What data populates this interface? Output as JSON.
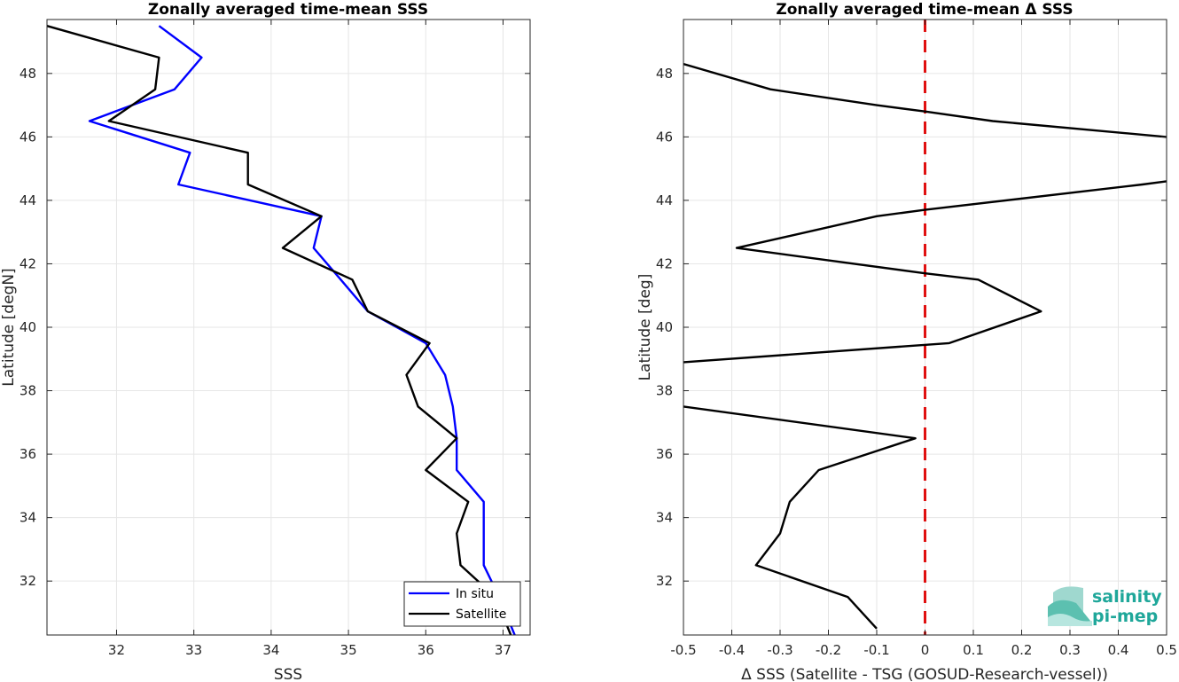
{
  "chart_data": [
    {
      "type": "line",
      "title": "Zonally averaged time-mean SSS",
      "xlabel": "SSS",
      "ylabel": "Latitude [degN]",
      "xlim": [
        31.1,
        37.35
      ],
      "ylim": [
        30.3,
        49.7
      ],
      "xticks": [
        32,
        33,
        34,
        35,
        36,
        37
      ],
      "yticks": [
        32,
        34,
        36,
        38,
        40,
        42,
        44,
        46,
        48
      ],
      "grid": true,
      "legend": {
        "placement": "bottom-right"
      },
      "series": [
        {
          "name": "In situ",
          "color": "#0000ff",
          "points": [
            [
              32.55,
              49.5
            ],
            [
              33.1,
              48.5
            ],
            [
              32.75,
              47.5
            ],
            [
              31.65,
              46.5
            ],
            [
              32.95,
              45.5
            ],
            [
              32.8,
              44.5
            ],
            [
              34.65,
              43.5
            ],
            [
              34.55,
              42.5
            ],
            [
              34.9,
              41.5
            ],
            [
              35.25,
              40.5
            ],
            [
              36.0,
              39.5
            ],
            [
              36.25,
              38.5
            ],
            [
              36.35,
              37.5
            ],
            [
              36.4,
              36.5
            ],
            [
              36.4,
              35.5
            ],
            [
              36.75,
              34.5
            ],
            [
              36.75,
              33.5
            ],
            [
              36.75,
              32.5
            ],
            [
              36.95,
              31.5
            ],
            [
              37.15,
              30.3
            ]
          ]
        },
        {
          "name": "Satellite",
          "color": "#000000",
          "points": [
            [
              31.1,
              49.5
            ],
            [
              32.55,
              48.5
            ],
            [
              32.5,
              47.5
            ],
            [
              31.9,
              46.5
            ],
            [
              33.7,
              45.5
            ],
            [
              33.7,
              44.5
            ],
            [
              34.65,
              43.5
            ],
            [
              34.15,
              42.5
            ],
            [
              35.05,
              41.5
            ],
            [
              35.25,
              40.5
            ],
            [
              36.05,
              39.5
            ],
            [
              35.75,
              38.5
            ],
            [
              35.9,
              37.5
            ],
            [
              36.4,
              36.5
            ],
            [
              36.0,
              35.5
            ],
            [
              36.55,
              34.5
            ],
            [
              36.4,
              33.5
            ],
            [
              36.45,
              32.5
            ],
            [
              36.9,
              31.5
            ],
            [
              37.1,
              30.3
            ]
          ]
        }
      ]
    },
    {
      "type": "line",
      "title": "Zonally averaged time-mean Δ SSS",
      "xlabel": "Δ SSS (Satellite - TSG (GOSUD-Research-vessel))",
      "ylabel": "Latitude [deg]",
      "xlim": [
        -0.5,
        0.5
      ],
      "ylim": [
        30.3,
        49.7
      ],
      "xticks": [
        "-0.5",
        "-0.4",
        "-0.3",
        "-0.2",
        "-0.1",
        "0",
        "0.1",
        "0.2",
        "0.3",
        "0.4",
        "0.5"
      ],
      "yticks": [
        32,
        34,
        36,
        38,
        40,
        42,
        44,
        46,
        48
      ],
      "grid": true,
      "reference_line": {
        "x": 0,
        "color": "#e01010",
        "style": "dashed"
      },
      "series": [
        {
          "color": "#000000",
          "points": [
            [
              -0.5,
              48.3
            ],
            [
              -0.32,
              47.5
            ],
            [
              -0.1,
              47.0
            ],
            [
              0.0,
              46.8
            ],
            [
              0.14,
              46.5
            ],
            [
              0.5,
              46.0
            ],
            [
              null,
              null
            ],
            [
              0.5,
              44.6
            ],
            [
              0.45,
              44.5
            ],
            [
              0.0,
              43.7
            ],
            [
              -0.1,
              43.5
            ],
            [
              -0.39,
              42.5
            ],
            [
              0.0,
              41.7
            ],
            [
              0.11,
              41.5
            ],
            [
              0.24,
              40.5
            ],
            [
              0.05,
              39.5
            ],
            [
              -0.5,
              38.9
            ],
            [
              null,
              null
            ],
            [
              -0.5,
              37.5
            ],
            [
              -0.02,
              36.5
            ],
            [
              -0.22,
              35.5
            ],
            [
              -0.28,
              34.5
            ],
            [
              -0.3,
              33.5
            ],
            [
              -0.35,
              32.5
            ],
            [
              -0.16,
              31.5
            ],
            [
              -0.1,
              30.5
            ]
          ]
        }
      ]
    }
  ],
  "logo": {
    "line1": "salinity",
    "line2": "pi-mep",
    "color": "#1fa79a"
  }
}
